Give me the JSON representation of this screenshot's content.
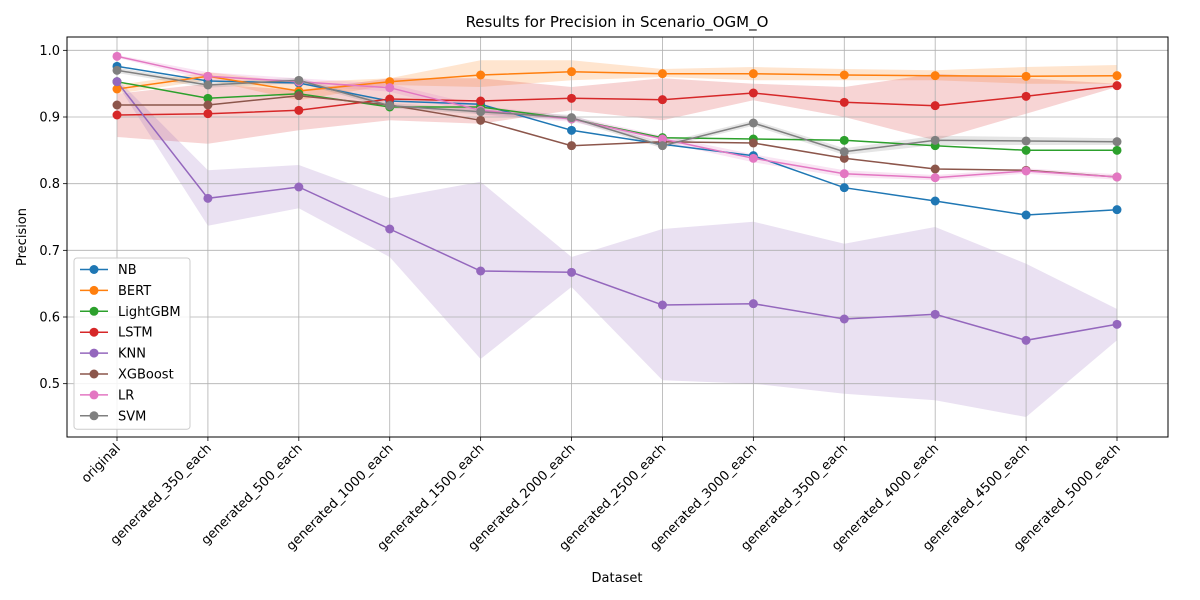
{
  "chart_data": {
    "type": "line",
    "title": "Results for Precision in Scenario_OGM_O",
    "xlabel": "Dataset",
    "ylabel": "Precision",
    "categories": [
      "original",
      "generated_350_each",
      "generated_500_each",
      "generated_1000_each",
      "generated_1500_each",
      "generated_2000_each",
      "generated_2500_each",
      "generated_3000_each",
      "generated_3500_each",
      "generated_4000_each",
      "generated_4500_each",
      "generated_5000_each"
    ],
    "ylim": [
      0.42,
      1.02
    ],
    "yticks": [
      "0.5",
      "0.6",
      "0.7",
      "0.8",
      "0.9",
      "1.0"
    ],
    "grid": true,
    "legend_position": "lower-left",
    "series": [
      {
        "name": "NB",
        "color": "#1f77b4",
        "values": [
          0.976,
          0.954,
          0.951,
          0.924,
          0.919,
          0.88,
          0.859,
          0.842,
          0.794,
          0.774,
          0.753,
          0.761
        ]
      },
      {
        "name": "BERT",
        "color": "#ff7f0e",
        "values": [
          0.942,
          0.961,
          0.939,
          0.953,
          0.963,
          0.968,
          0.965,
          0.965,
          0.963,
          0.962,
          0.961,
          0.962
        ],
        "band_low": [
          0.935,
          0.955,
          0.925,
          0.948,
          0.945,
          0.955,
          0.96,
          0.955,
          0.955,
          0.955,
          0.95,
          0.95
        ],
        "band_high": [
          0.948,
          0.967,
          0.952,
          0.958,
          0.985,
          0.985,
          0.972,
          0.975,
          0.972,
          0.97,
          0.975,
          0.978
        ]
      },
      {
        "name": "LightGBM",
        "color": "#2ca02c",
        "values": [
          0.953,
          0.928,
          0.935,
          0.915,
          0.915,
          0.897,
          0.869,
          0.867,
          0.865,
          0.857,
          0.85,
          0.85
        ]
      },
      {
        "name": "LSTM",
        "color": "#d62728",
        "values": [
          0.903,
          0.905,
          0.91,
          0.927,
          0.924,
          0.928,
          0.926,
          0.936,
          0.922,
          0.917,
          0.931,
          0.947
        ],
        "band_low": [
          0.87,
          0.86,
          0.88,
          0.895,
          0.89,
          0.91,
          0.895,
          0.925,
          0.9,
          0.865,
          0.905,
          0.945
        ],
        "band_high": [
          0.935,
          0.95,
          0.94,
          0.958,
          0.958,
          0.945,
          0.958,
          0.95,
          0.945,
          0.965,
          0.958,
          0.95
        ]
      },
      {
        "name": "KNN",
        "color": "#9467bd",
        "values": [
          0.953,
          0.778,
          0.795,
          0.732,
          0.669,
          0.667,
          0.618,
          0.62,
          0.597,
          0.604,
          0.565,
          0.589
        ],
        "band_low": [
          0.95,
          0.737,
          0.763,
          0.69,
          0.537,
          0.645,
          0.505,
          0.5,
          0.485,
          0.475,
          0.45,
          0.565
        ],
        "band_high": [
          0.957,
          0.82,
          0.828,
          0.778,
          0.803,
          0.69,
          0.732,
          0.743,
          0.71,
          0.735,
          0.68,
          0.612
        ]
      },
      {
        "name": "XGBoost",
        "color": "#8c564b",
        "values": [
          0.918,
          0.918,
          0.932,
          0.918,
          0.895,
          0.857,
          0.863,
          0.861,
          0.838,
          0.822,
          0.82,
          0.81
        ]
      },
      {
        "name": "LR",
        "color": "#e377c2",
        "values": [
          0.991,
          0.961,
          0.953,
          0.944,
          0.91,
          0.897,
          0.867,
          0.838,
          0.815,
          0.809,
          0.819,
          0.81
        ],
        "band_low": [
          0.989,
          0.955,
          0.948,
          0.938,
          0.903,
          0.893,
          0.862,
          0.832,
          0.81,
          0.805,
          0.815,
          0.806
        ],
        "band_high": [
          0.993,
          0.967,
          0.958,
          0.95,
          0.917,
          0.901,
          0.872,
          0.844,
          0.82,
          0.813,
          0.823,
          0.814
        ]
      },
      {
        "name": "SVM",
        "color": "#7f7f7f",
        "values": [
          0.97,
          0.948,
          0.955,
          0.917,
          0.908,
          0.899,
          0.857,
          0.891,
          0.848,
          0.865,
          0.864,
          0.863
        ],
        "band_low": [
          0.966,
          0.944,
          0.951,
          0.913,
          0.904,
          0.895,
          0.853,
          0.887,
          0.843,
          0.858,
          0.858,
          0.858
        ],
        "band_high": [
          0.974,
          0.952,
          0.959,
          0.921,
          0.912,
          0.903,
          0.861,
          0.895,
          0.853,
          0.872,
          0.87,
          0.868
        ]
      }
    ]
  }
}
